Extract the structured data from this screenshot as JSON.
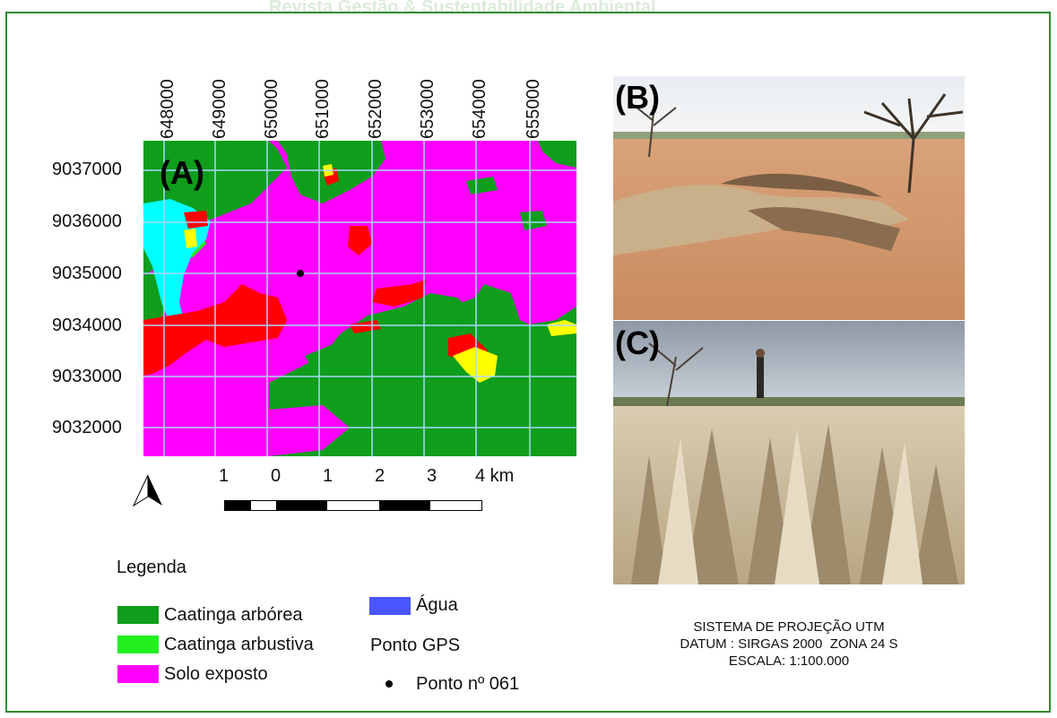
{
  "header": {
    "watermark": "Revista Gestão & Sustentabilidade Ambiental"
  },
  "map_a": {
    "label": "(A)",
    "x_ticks": [
      "648000",
      "649000",
      "650000",
      "651000",
      "652000",
      "653000",
      "654000",
      "655000"
    ],
    "y_ticks": [
      "9037000",
      "9036000",
      "9035000",
      "9034000",
      "9033000",
      "9032000"
    ],
    "gps_point_marker": "Ponto nº 061"
  },
  "scale": {
    "labels": [
      "1",
      "0",
      "1",
      "2",
      "3",
      "4 km"
    ]
  },
  "legend": {
    "title": "Legenda",
    "items": [
      {
        "label": "Caatinga arbórea",
        "color": "#0f9d1c"
      },
      {
        "label": "Caatinga arbustiva",
        "color": "#22f01f"
      },
      {
        "label": "Solo exposto",
        "color": "#ff00ff"
      },
      {
        "label": "Água",
        "color": "#4a55ff"
      }
    ],
    "gps_title": "Ponto GPS",
    "gps_item": "Ponto nº 061"
  },
  "photos": {
    "b_label": "(B)",
    "c_label": "(C)"
  },
  "projection": {
    "line1": "SISTEMA DE PROJEÇÃO UTM",
    "line2": "DATUM : SIRGAS 2000  ZONA 24 S",
    "line3": "ESCALA: 1:100.000"
  },
  "colors": {
    "frame": "#2f8a2f",
    "arborea": "#0f9d1c",
    "arbustiva": "#22f01f",
    "solo": "#ff00ff",
    "agua": "#4a55ff",
    "red_class": "#ff0000",
    "yellow_class": "#ffff00",
    "cyan_class": "#00ffff",
    "grid": "#a8d8ff"
  }
}
